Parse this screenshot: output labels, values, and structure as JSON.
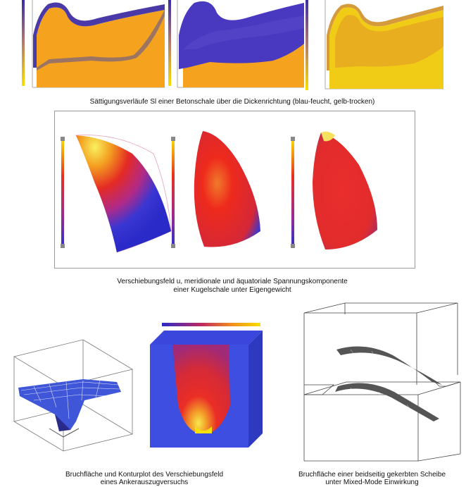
{
  "captions": {
    "saturation": "Sättigungsverläufe Sl einer Betonschale über die Dickenrichtung (blau-feucht, gelb-trocken)",
    "displacement_line1": "Verschiebungsfeld u, meridionale und äquatoriale Spannungskomponente",
    "displacement_line2": "einer Kugelschale unter Eigengewicht",
    "fracture_line1": "Bruchfläche und Konturplot des Verschiebungsfeld",
    "fracture_line2": "eines Ankerauszugversuchs",
    "notched_line1": "Bruchfläche einer beidseitig gekerbten Scheibe",
    "notched_line2": "unter Mixed-Mode Einwirkung"
  },
  "colors": {
    "wet": "#4433aa",
    "dry": "#f7c600",
    "orange": "#f4a21c",
    "red": "#e52a22",
    "blue": "#3340d8"
  }
}
